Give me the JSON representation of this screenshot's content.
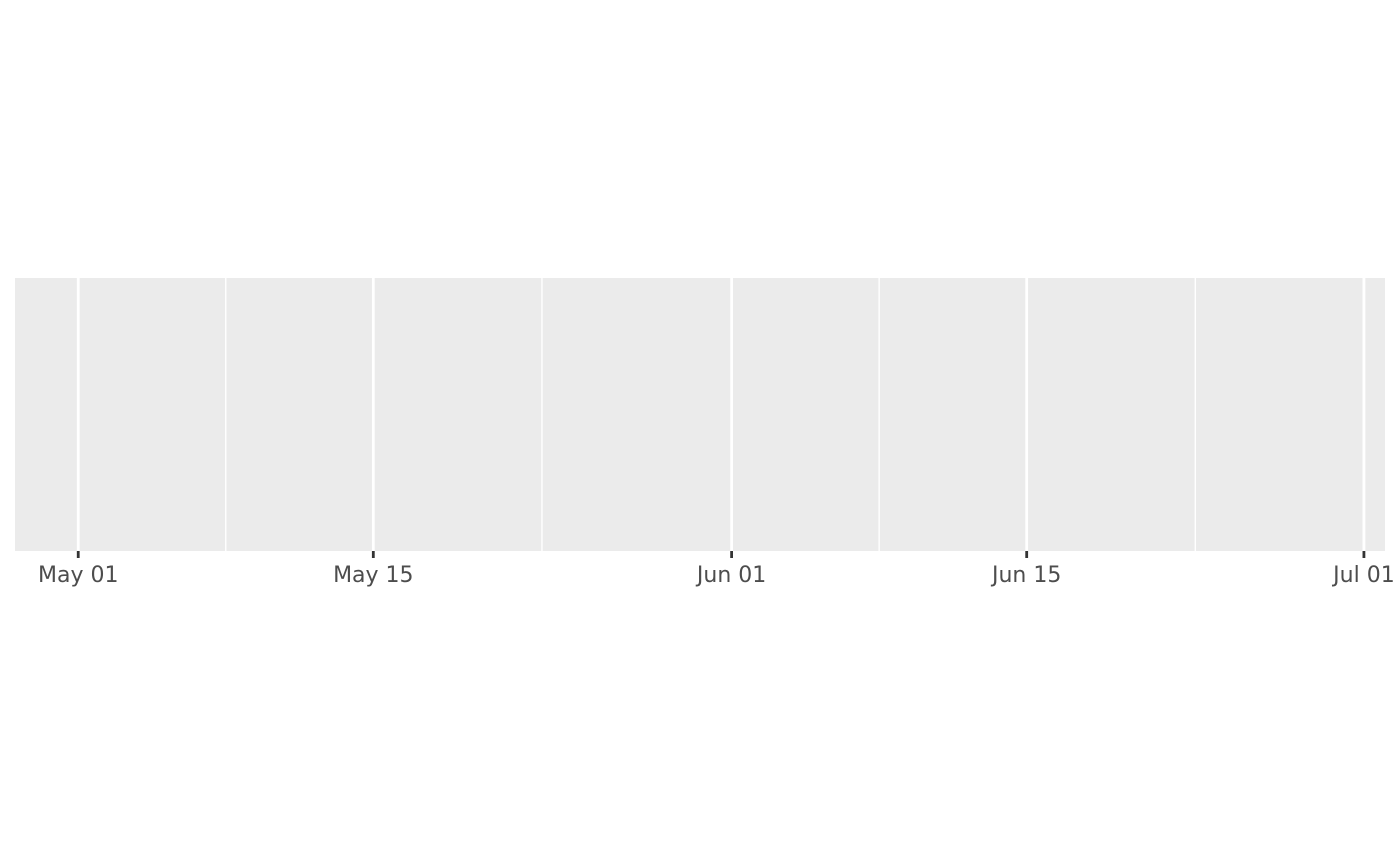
{
  "chart_data": {
    "type": "scatter",
    "title": "",
    "xlabel": "",
    "ylabel": "",
    "x_axis": {
      "scale": "date",
      "range": [
        "2020-04-28",
        "2020-07-02"
      ],
      "major_ticks": [
        {
          "date": "2020-05-01",
          "label": "May 01"
        },
        {
          "date": "2020-05-15",
          "label": "May 15"
        },
        {
          "date": "2020-06-01",
          "label": "Jun 01"
        },
        {
          "date": "2020-06-15",
          "label": "Jun 15"
        },
        {
          "date": "2020-07-01",
          "label": "Jul 01"
        }
      ],
      "minor_gridlines": [
        "2020-05-08",
        "2020-05-23",
        "2020-06-08",
        "2020-06-23"
      ]
    },
    "y_axis": {
      "visible": false
    },
    "series": [],
    "grid": true,
    "panel_background": "#ebebeb",
    "gridline_color": "#ffffff",
    "tick_color": "#333333",
    "tick_label_color": "#4d4d4d"
  }
}
